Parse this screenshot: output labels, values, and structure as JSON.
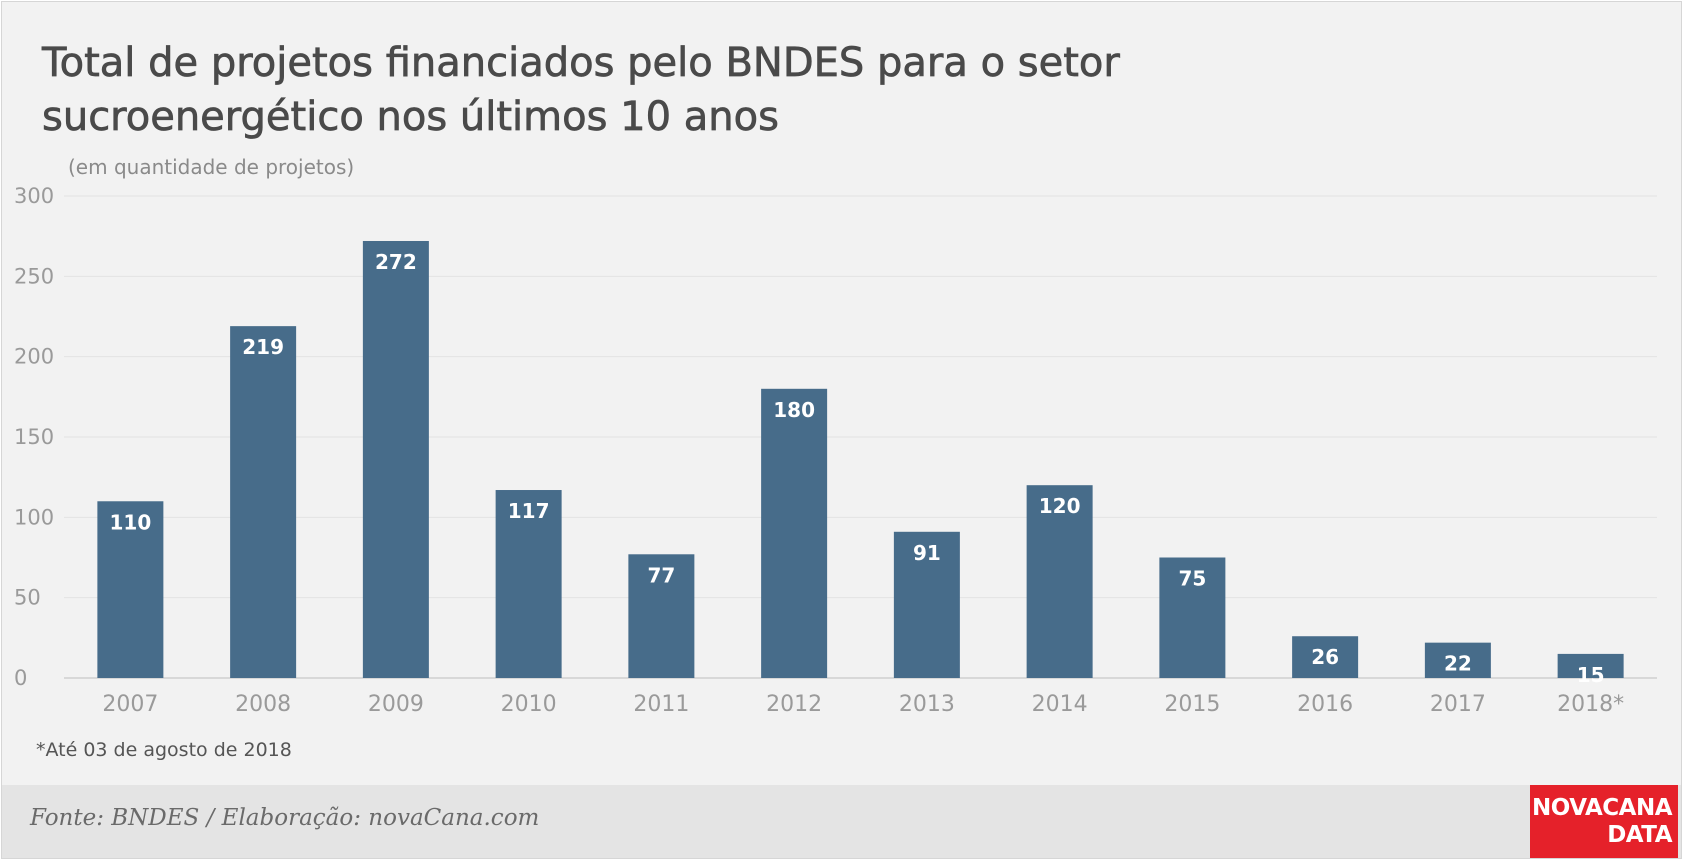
{
  "chart_data": {
    "type": "bar",
    "title": "Total de projetos financiados pelo BNDES para o setor sucroenergético nos últimos 10 anos",
    "subtitle": "(em quantidade de projetos)",
    "categories": [
      "2007",
      "2008",
      "2009",
      "2010",
      "2011",
      "2012",
      "2013",
      "2014",
      "2015",
      "2016",
      "2017",
      "2018*"
    ],
    "values": [
      110,
      219,
      272,
      117,
      77,
      180,
      91,
      120,
      75,
      26,
      22,
      15
    ],
    "xlabel": "",
    "ylabel": "",
    "ylim": [
      0,
      300
    ],
    "yticks": [
      0,
      50,
      100,
      150,
      200,
      250,
      300
    ],
    "grid": true,
    "legend": "none",
    "bar_color": "#476c8a",
    "data_labels": "inside-top"
  },
  "footnote": "*Até 03 de agosto de 2018",
  "footer": {
    "source": "Fonte: BNDES / Elaboração: novaCana.com",
    "brand_line1": "NOVACANA",
    "brand_line2": "DATA",
    "brand_color": "#e5212a"
  }
}
